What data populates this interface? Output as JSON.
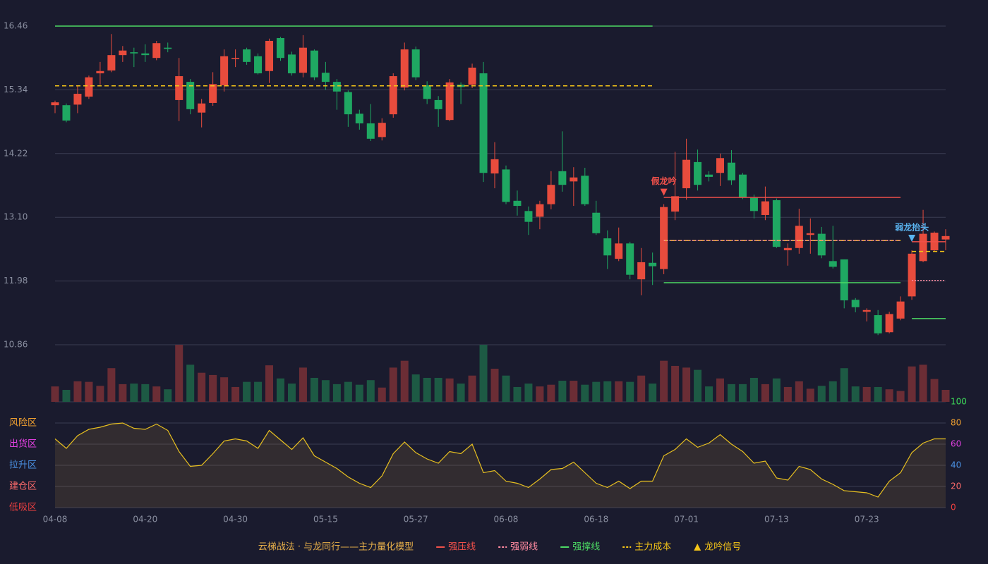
{
  "chart_data": {
    "type": "candlestick",
    "categories": [
      "04-08",
      null,
      null,
      null,
      null,
      null,
      null,
      null,
      "04-20",
      null,
      null,
      null,
      null,
      null,
      null,
      null,
      "04-30",
      null,
      null,
      null,
      null,
      null,
      null,
      null,
      "05-15",
      null,
      null,
      null,
      null,
      null,
      null,
      null,
      "05-27",
      null,
      null,
      null,
      null,
      null,
      null,
      null,
      "06-08",
      null,
      null,
      null,
      null,
      null,
      null,
      null,
      "06-18",
      null,
      null,
      null,
      null,
      null,
      null,
      null,
      "07-01",
      null,
      null,
      null,
      null,
      null,
      null,
      null,
      "07-13",
      null,
      null,
      null,
      null,
      null,
      null,
      null,
      "07-23",
      null,
      null,
      null,
      null,
      null,
      null,
      null
    ],
    "open": [
      15.07,
      15.07,
      15.08,
      15.22,
      15.63,
      15.68,
      15.95,
      16.0,
      15.98,
      15.9,
      16.08,
      15.16,
      15.48,
      14.94,
      15.11,
      15.42,
      15.88,
      16.05,
      15.93,
      15.67,
      16.25,
      15.96,
      15.64,
      16.03,
      15.64,
      15.48,
      15.3,
      14.92,
      14.75,
      14.51,
      14.91,
      15.38,
      16.05,
      15.42,
      15.16,
      14.81,
      15.43,
      15.43,
      15.63,
      13.87,
      13.94,
      13.39,
      13.21,
      13.11,
      13.33,
      13.91,
      13.73,
      13.83,
      13.18,
      12.73,
      12.37,
      12.64,
      12.01,
      12.3,
      12.19,
      13.2,
      13.61,
      14.07,
      13.85,
      13.88,
      14.06,
      13.85,
      13.44,
      13.14,
      13.4,
      12.52,
      12.56,
      12.79,
      12.81,
      12.33,
      12.36,
      11.65,
      11.44,
      11.38,
      11.08,
      11.32,
      11.71,
      12.33,
      12.52,
      12.71
    ],
    "high": [
      15.15,
      15.1,
      15.41,
      15.59,
      15.83,
      16.32,
      16.11,
      16.08,
      16.14,
      16.2,
      16.17,
      15.9,
      15.53,
      15.18,
      15.65,
      16.05,
      16.05,
      16.08,
      15.98,
      16.24,
      16.27,
      16.01,
      16.3,
      16.05,
      15.83,
      15.53,
      15.33,
      14.99,
      15.09,
      14.84,
      15.63,
      16.17,
      16.1,
      15.49,
      15.23,
      15.53,
      15.47,
      15.8,
      15.83,
      14.42,
      14.01,
      13.57,
      13.29,
      13.39,
      13.91,
      14.61,
      13.98,
      13.97,
      13.39,
      12.87,
      12.92,
      12.67,
      12.56,
      12.48,
      13.33,
      14.25,
      14.48,
      14.29,
      13.91,
      14.22,
      14.28,
      13.88,
      13.5,
      13.64,
      13.43,
      12.64,
      13.25,
      13.08,
      12.93,
      12.95,
      12.36,
      11.68,
      11.5,
      11.47,
      11.44,
      11.71,
      12.52,
      13.23,
      12.85,
      12.89
    ],
    "low": [
      14.93,
      14.77,
      14.93,
      15.18,
      15.43,
      15.65,
      15.83,
      15.74,
      15.83,
      15.86,
      16.0,
      14.79,
      14.91,
      14.68,
      15.06,
      15.31,
      15.74,
      15.78,
      15.61,
      15.46,
      15.85,
      15.59,
      15.56,
      15.51,
      15.34,
      14.99,
      14.69,
      14.64,
      14.44,
      14.45,
      14.85,
      15.33,
      15.51,
      15.09,
      14.69,
      14.79,
      15.09,
      15.37,
      13.72,
      13.61,
      13.33,
      13.13,
      12.79,
      12.89,
      13.24,
      13.55,
      13.3,
      13.3,
      12.79,
      12.19,
      12.33,
      12.01,
      11.73,
      11.91,
      12.1,
      13.05,
      13.41,
      13.57,
      13.73,
      13.65,
      13.67,
      13.42,
      13.08,
      13.05,
      12.56,
      12.25,
      12.46,
      12.46,
      12.38,
      12.2,
      11.5,
      11.43,
      11.27,
      11.03,
      11.06,
      11.29,
      11.65,
      12.31,
      12.5,
      12.52
    ],
    "close": [
      15.12,
      14.8,
      15.27,
      15.56,
      15.67,
      15.95,
      16.03,
      15.98,
      15.95,
      16.16,
      16.06,
      15.58,
      15.0,
      15.1,
      15.44,
      15.93,
      15.9,
      15.83,
      15.63,
      16.2,
      15.9,
      15.63,
      16.08,
      15.56,
      15.48,
      15.31,
      14.91,
      14.75,
      14.48,
      14.76,
      15.58,
      16.05,
      15.56,
      15.18,
      15.0,
      15.47,
      15.39,
      15.73,
      13.88,
      14.12,
      13.37,
      13.3,
      13.02,
      13.33,
      13.67,
      13.67,
      13.8,
      13.33,
      12.82,
      12.43,
      12.64,
      12.09,
      12.31,
      12.24,
      13.28,
      13.47,
      14.11,
      13.67,
      13.81,
      14.14,
      13.75,
      13.45,
      13.21,
      13.38,
      12.58,
      12.56,
      12.95,
      12.82,
      12.43,
      12.23,
      11.64,
      11.52,
      11.47,
      11.06,
      11.4,
      11.62,
      12.46,
      12.81,
      12.83,
      12.77
    ],
    "up_color": "#e84c3d",
    "down_color": "#1fa862",
    "ylim": [
      10.86,
      16.46
    ],
    "yticks": [
      16.46,
      15.34,
      14.22,
      {
        "value": 13.1,
        "label": "13.10"
      },
      11.98,
      10.86
    ],
    "grid": true,
    "volume": {
      "ylim": [
        0,
        100
      ],
      "up_color": "#6b2d35",
      "down_color": "#1d5a44",
      "values": [
        27,
        21,
        36,
        35,
        28,
        59,
        31,
        32,
        31,
        27,
        22,
        100,
        65,
        51,
        47,
        43,
        26,
        35,
        35,
        64,
        41,
        32,
        60,
        42,
        38,
        31,
        35,
        30,
        38,
        25,
        60,
        72,
        48,
        42,
        42,
        41,
        32,
        46,
        100,
        58,
        46,
        26,
        32,
        27,
        30,
        37,
        37,
        30,
        35,
        36,
        36,
        35,
        46,
        32,
        72,
        63,
        60,
        56,
        27,
        41,
        31,
        31,
        42,
        31,
        41,
        26,
        36,
        23,
        28,
        36,
        59,
        27,
        26,
        26,
        22,
        19,
        62,
        65,
        40,
        21
      ]
    },
    "oscillator": {
      "ylim": [
        0,
        100
      ],
      "yticks": [
        100,
        80,
        60,
        40,
        20,
        0
      ],
      "ytick_colors": [
        "#3ddc5a",
        "#f0a030",
        "#e040e0",
        "#4a90e2",
        "#ff6b6b",
        "#f04040"
      ],
      "color": "#e8c020",
      "zones": [
        {
          "label": "风险区",
          "value": 80,
          "color": "#f0a030"
        },
        {
          "label": "出货区",
          "value": 60,
          "color": "#e040e0"
        },
        {
          "label": "拉升区",
          "value": 40,
          "color": "#4a90e2"
        },
        {
          "label": "建仓区",
          "value": 20,
          "color": "#ff6b6b"
        },
        {
          "label": "低吸区",
          "value": 0,
          "color": "#f04040"
        }
      ],
      "values": [
        65,
        56,
        68,
        74,
        76,
        79,
        80,
        75,
        74,
        79,
        73,
        53,
        39,
        40,
        51,
        63,
        65,
        63,
        56,
        73,
        64,
        55,
        66,
        49,
        43,
        37,
        29,
        23,
        19,
        30,
        51,
        62,
        52,
        46,
        42,
        53,
        51,
        60,
        33,
        35,
        25,
        23,
        19,
        27,
        36,
        37,
        43,
        33,
        23,
        19,
        25,
        18,
        25,
        25,
        49,
        55,
        65,
        57,
        61,
        69,
        60,
        53,
        42,
        44,
        28,
        26,
        39,
        36,
        27,
        22,
        16,
        15,
        14,
        10,
        25,
        33,
        52,
        61,
        65,
        65
      ]
    },
    "legend_title": "云梯战法 · 与龙同行——主力量化模型",
    "legend_title_color": "#e8b04a",
    "lines": [
      {
        "name": "强压线",
        "color": "#f0504a",
        "style": "solid"
      },
      {
        "name": "强弱线",
        "color": "#ff8aa0",
        "style": "dotted"
      },
      {
        "name": "强撑线",
        "color": "#4cd964",
        "style": "solid"
      },
      {
        "name": "主力成本",
        "color": "#f5c518",
        "style": "dashed"
      }
    ],
    "signal_legend": {
      "name": "龙吟信号",
      "color": "#f5c518"
    },
    "segments": [
      {
        "line": 2,
        "value": 16.46,
        "start": 0,
        "end": 53
      },
      {
        "line": 3,
        "value": 15.41,
        "start": 0,
        "end": 53
      },
      {
        "line": 0,
        "value": 13.45,
        "start": 54,
        "end": 75
      },
      {
        "line": 3,
        "value": 12.69,
        "start": 54,
        "end": 75
      },
      {
        "line": 1,
        "value": 12.69,
        "start": 54,
        "end": 75
      },
      {
        "line": 2,
        "value": 11.95,
        "start": 54,
        "end": 75
      },
      {
        "line": 0,
        "value": 12.67,
        "start": 76,
        "end": 79
      },
      {
        "line": 3,
        "value": 12.5,
        "start": 76,
        "end": 79
      },
      {
        "line": 1,
        "value": 11.99,
        "start": 76,
        "end": 79
      },
      {
        "line": 2,
        "value": 11.32,
        "start": 76,
        "end": 79
      }
    ],
    "signals": [
      {
        "label": "假龙吟",
        "index": 54,
        "color": "#f0504a"
      },
      {
        "label": "弱龙抬头",
        "index": 76,
        "color": "#5ab4f0"
      }
    ]
  }
}
